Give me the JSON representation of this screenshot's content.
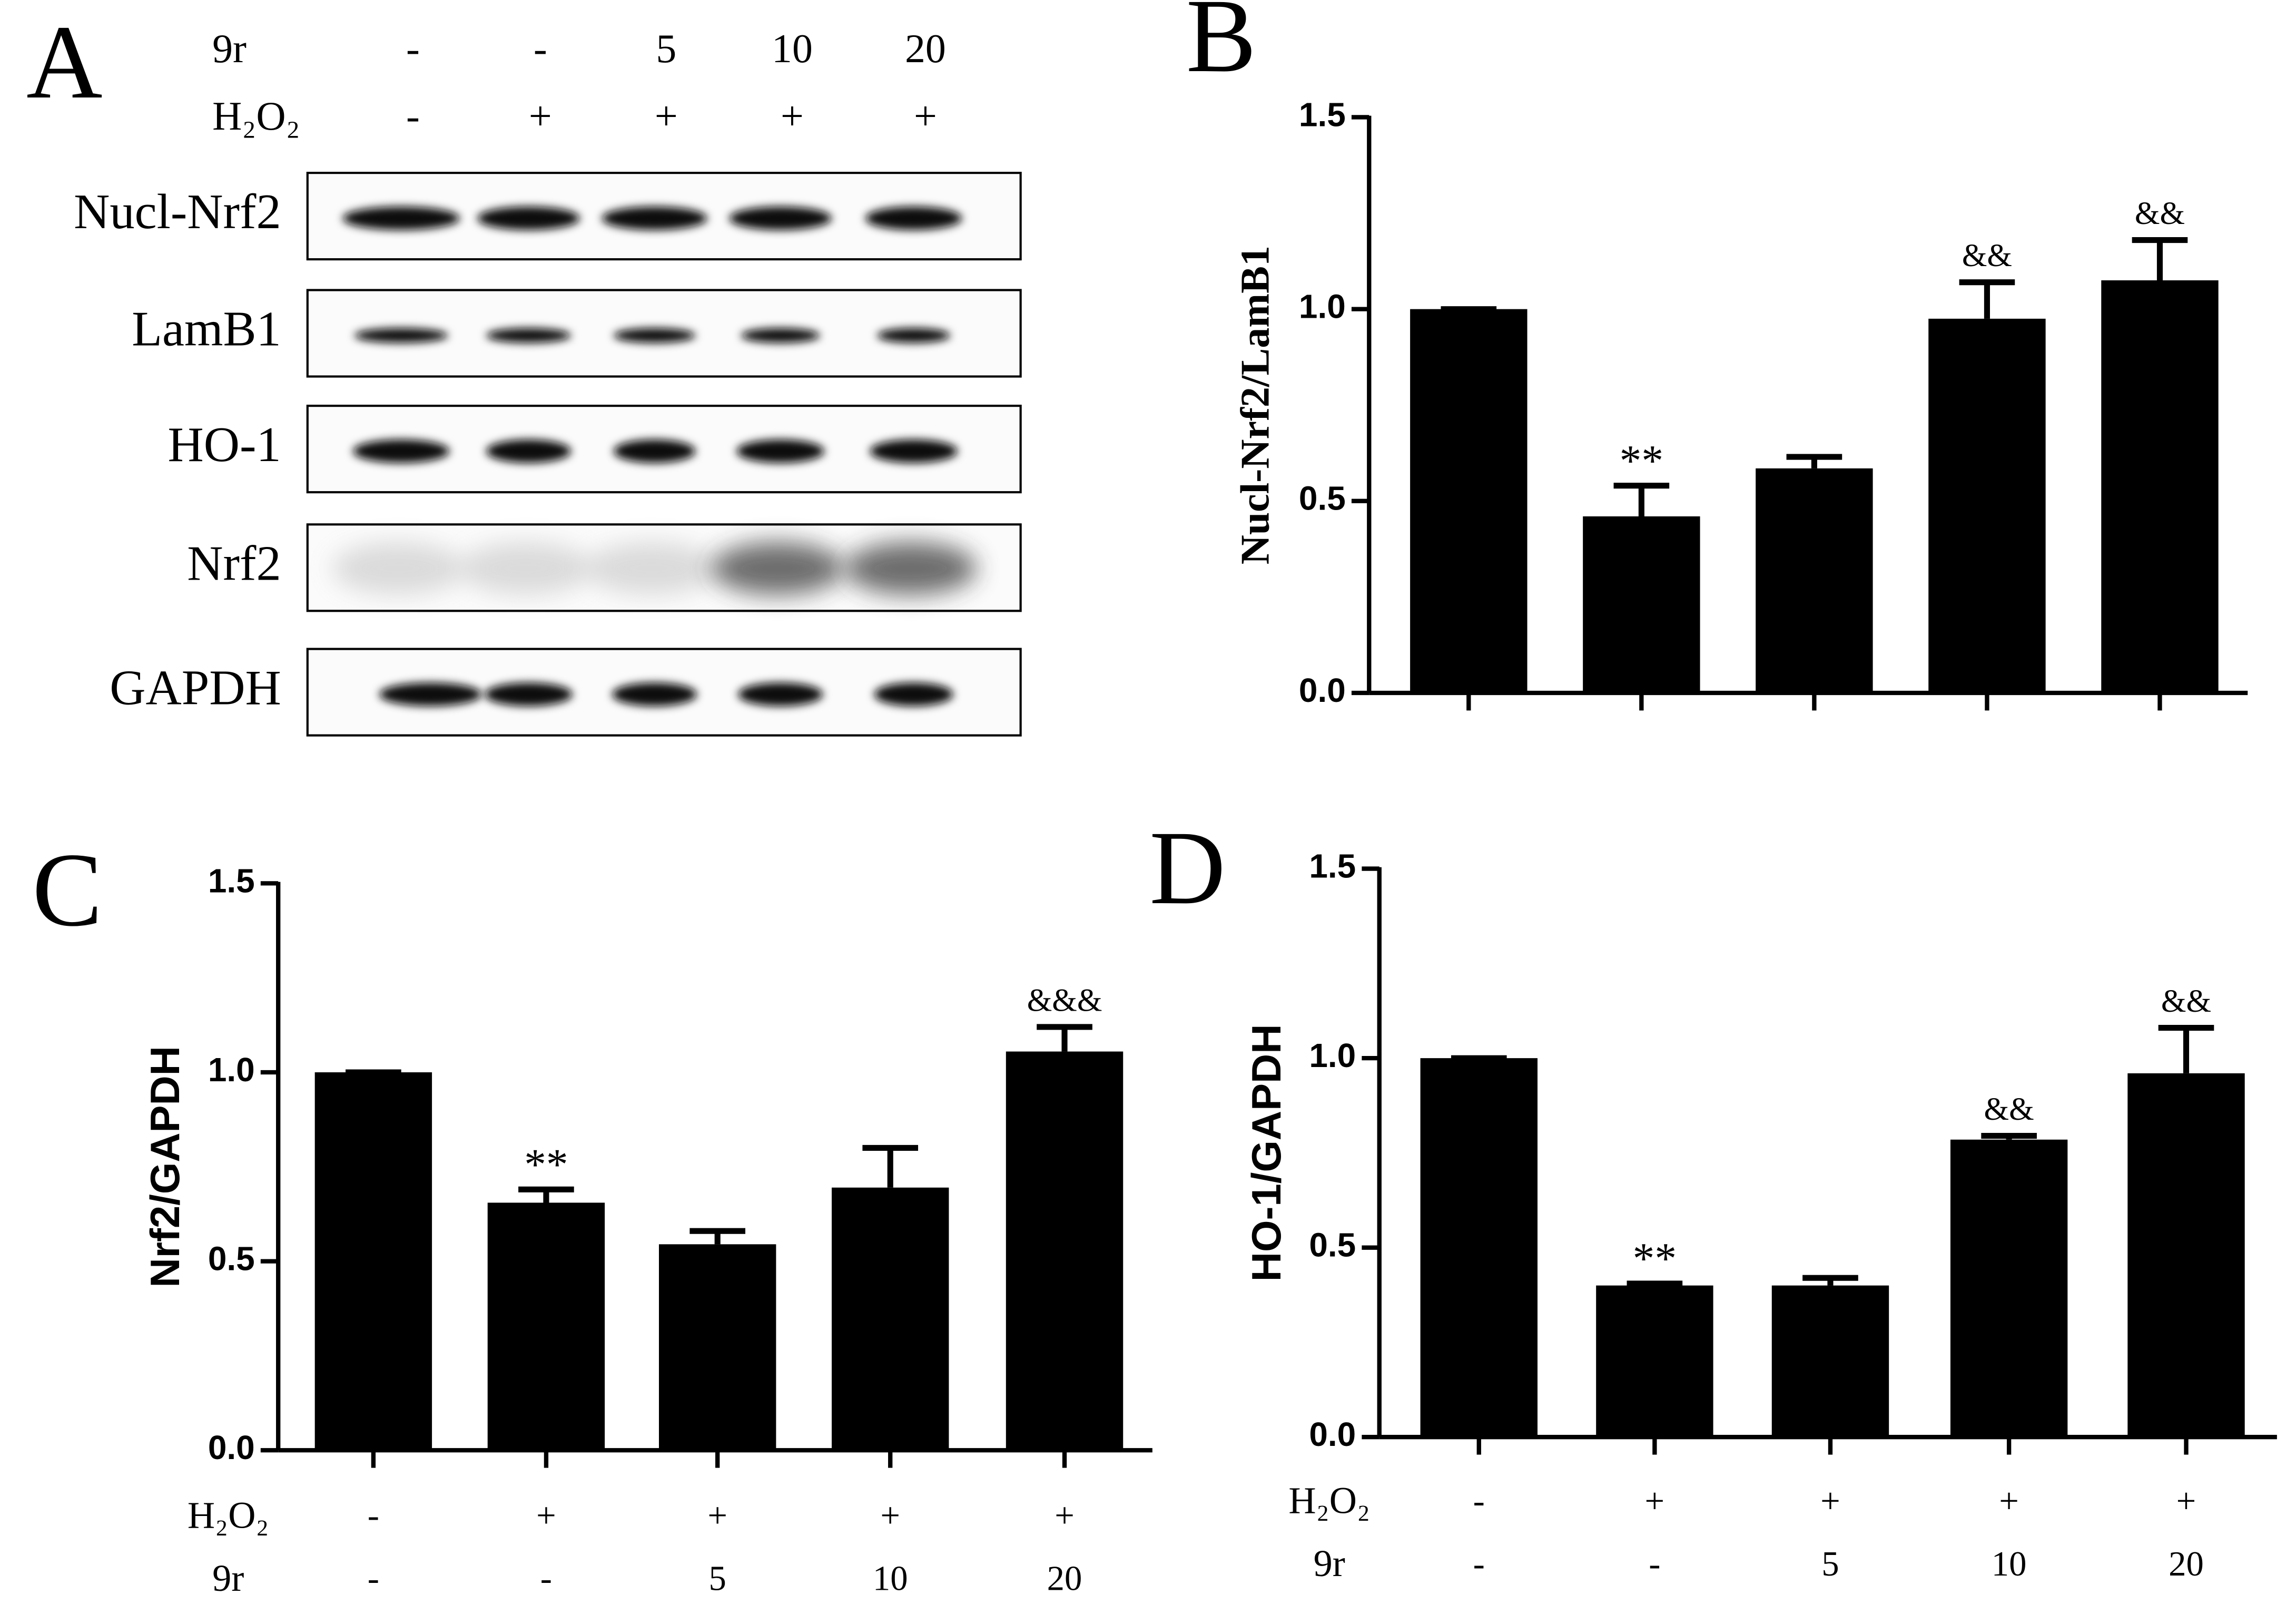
{
  "blot": {
    "panel": "A",
    "header": [
      {
        "label": "9r",
        "values": [
          "-",
          "-",
          "5",
          "10",
          "20"
        ]
      },
      {
        "label": "H₂O₂",
        "values": [
          "-",
          "+",
          "+",
          "+",
          "+"
        ]
      }
    ],
    "bands": [
      "Nucl-Nrf2",
      "LamB1",
      "HO-1",
      "Nrf2",
      "GAPDH"
    ]
  },
  "chart_data": [
    {
      "type": "bar",
      "panel": "B",
      "ylabel": "Nucl-Nrf2/LamB1",
      "color": "#000000",
      "values": [
        1.0,
        0.46,
        0.585,
        0.975,
        1.075
      ],
      "errors": [
        0,
        0.08,
        0.03,
        0.095,
        0.105
      ],
      "annotations": [
        {
          "index": 1,
          "text": "**"
        },
        {
          "index": 3,
          "text": "&&"
        },
        {
          "index": 4,
          "text": "&&"
        }
      ],
      "ylim": [
        0,
        1.5
      ],
      "yticks": [
        {
          "value": 0,
          "label": "0.0"
        },
        {
          "value": 0.5,
          "label": "0.5"
        },
        {
          "value": 1,
          "label": "1.0"
        },
        {
          "value": 1.5,
          "label": "1.5"
        }
      ]
    },
    {
      "type": "bar",
      "panel": "C",
      "ylabel": "Nrf2/GAPDH",
      "color": "#000000",
      "values": [
        1.0,
        0.655,
        0.545,
        0.695,
        1.055
      ],
      "errors": [
        0,
        0.035,
        0.035,
        0.105,
        0.065
      ],
      "annotations": [
        {
          "index": 1,
          "text": "**"
        },
        {
          "index": 4,
          "text": "&&&"
        }
      ],
      "rows": [
        {
          "label": "H₂O₂",
          "values": [
            "-",
            "+",
            "+",
            "+",
            "+"
          ]
        },
        {
          "label": "9r",
          "values": [
            "-",
            "-",
            "5",
            "10",
            "20"
          ]
        }
      ],
      "ylim": [
        0,
        1.5
      ],
      "yticks": [
        {
          "value": 0,
          "label": "0.0"
        },
        {
          "value": 0.5,
          "label": "0.5"
        },
        {
          "value": 1,
          "label": "1.0"
        },
        {
          "value": 1.5,
          "label": "1.5"
        }
      ]
    },
    {
      "type": "bar",
      "panel": "D",
      "ylabel": "HO-1/GAPDH",
      "color": "#000000",
      "values": [
        1.0,
        0.4,
        0.4,
        0.785,
        0.96
      ],
      "errors": [
        0,
        0.005,
        0.02,
        0.01,
        0.12
      ],
      "annotations": [
        {
          "index": 1,
          "text": "**"
        },
        {
          "index": 3,
          "text": "&&"
        },
        {
          "index": 4,
          "text": "&&"
        }
      ],
      "rows": [
        {
          "label": "H₂O₂",
          "values": [
            "-",
            "+",
            "+",
            "+",
            "+"
          ]
        },
        {
          "label": "9r",
          "values": [
            "-",
            "-",
            "5",
            "10",
            "20"
          ]
        }
      ],
      "ylim": [
        0,
        1.5
      ],
      "yticks": [
        {
          "value": 0,
          "label": "0.0"
        },
        {
          "value": 0.5,
          "label": "0.5"
        },
        {
          "value": 1,
          "label": "1.0"
        },
        {
          "value": 1.5,
          "label": "1.5"
        }
      ]
    }
  ]
}
